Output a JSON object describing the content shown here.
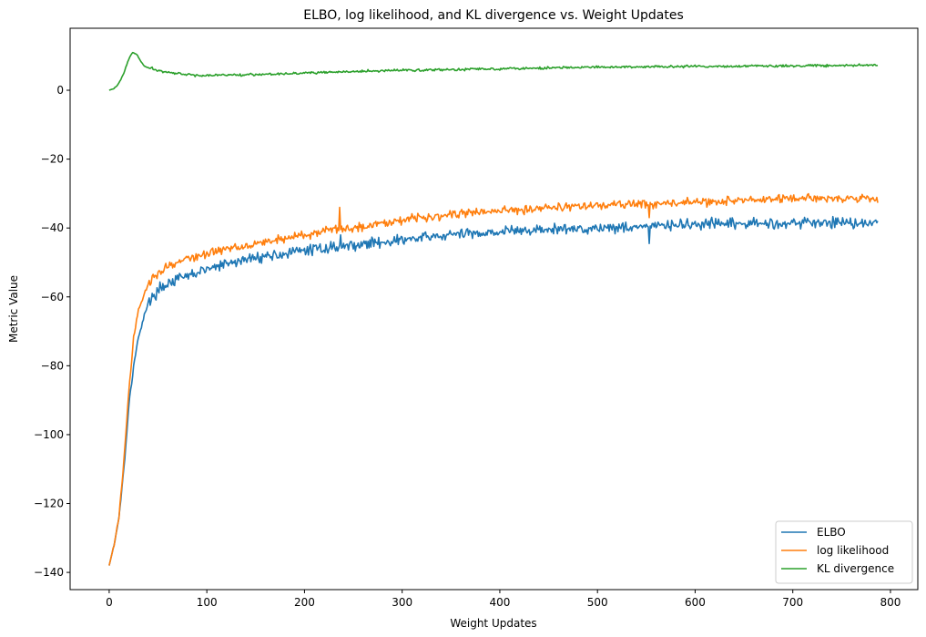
{
  "chart_data": {
    "type": "line",
    "title": "ELBO, log likelihood, and KL divergence vs. Weight Updates",
    "xlabel": "Weight Updates",
    "ylabel": "Metric Value",
    "xlim": [
      -40,
      828
    ],
    "ylim": [
      -145,
      18
    ],
    "xticks": [
      0,
      100,
      200,
      300,
      400,
      500,
      600,
      700,
      800
    ],
    "yticks": [
      0,
      -20,
      -40,
      -60,
      -80,
      -100,
      -120,
      -140
    ],
    "xtick_labels": [
      "0",
      "100",
      "200",
      "300",
      "400",
      "500",
      "600",
      "700",
      "800"
    ],
    "ytick_labels": [
      "0",
      "−20",
      "−40",
      "−60",
      "−80",
      "−100",
      "−120",
      "−140"
    ],
    "grid": false,
    "legend_position": "lower right",
    "x_range": [
      0,
      787
    ],
    "series": [
      {
        "name": "ELBO",
        "color": "#1f77b4",
        "points": [
          [
            0,
            -138
          ],
          [
            5,
            -132
          ],
          [
            10,
            -124
          ],
          [
            15,
            -110
          ],
          [
            20,
            -92
          ],
          [
            25,
            -80
          ],
          [
            30,
            -72
          ],
          [
            35,
            -66
          ],
          [
            40,
            -62
          ],
          [
            50,
            -58
          ],
          [
            60,
            -56
          ],
          [
            70,
            -55
          ],
          [
            80,
            -54
          ],
          [
            100,
            -52
          ],
          [
            120,
            -50.5
          ],
          [
            150,
            -48.5
          ],
          [
            180,
            -47.5
          ],
          [
            200,
            -46.5
          ],
          [
            230,
            -45.5
          ],
          [
            250,
            -45
          ],
          [
            280,
            -44
          ],
          [
            300,
            -43.5
          ],
          [
            350,
            -42
          ],
          [
            400,
            -41
          ],
          [
            450,
            -40.5
          ],
          [
            500,
            -40
          ],
          [
            550,
            -39.5
          ],
          [
            600,
            -39
          ],
          [
            650,
            -38.8
          ],
          [
            700,
            -38.5
          ],
          [
            750,
            -38.3
          ],
          [
            787,
            -38.5
          ]
        ],
        "spikes": [
          [
            237,
            -42
          ],
          [
            553,
            -44.5
          ]
        ],
        "noise": 1.1
      },
      {
        "name": "log likelihood",
        "color": "#ff7f0e",
        "points": [
          [
            0,
            -138
          ],
          [
            5,
            -132
          ],
          [
            10,
            -124
          ],
          [
            15,
            -108
          ],
          [
            20,
            -88
          ],
          [
            25,
            -72
          ],
          [
            30,
            -64
          ],
          [
            35,
            -60
          ],
          [
            40,
            -56
          ],
          [
            50,
            -53
          ],
          [
            60,
            -51
          ],
          [
            70,
            -50
          ],
          [
            80,
            -49
          ],
          [
            100,
            -47.5
          ],
          [
            120,
            -46
          ],
          [
            150,
            -44.5
          ],
          [
            180,
            -43
          ],
          [
            200,
            -42
          ],
          [
            230,
            -40.5
          ],
          [
            250,
            -40
          ],
          [
            280,
            -38.5
          ],
          [
            300,
            -37.5
          ],
          [
            350,
            -36
          ],
          [
            400,
            -35
          ],
          [
            450,
            -34
          ],
          [
            500,
            -33.5
          ],
          [
            550,
            -33
          ],
          [
            600,
            -32.5
          ],
          [
            650,
            -32
          ],
          [
            700,
            -31.5
          ],
          [
            750,
            -31.3
          ],
          [
            787,
            -31.5
          ]
        ],
        "spikes": [
          [
            236,
            -34
          ],
          [
            553,
            -37
          ]
        ],
        "noise": 0.9
      },
      {
        "name": "KL divergence",
        "color": "#2ca02c",
        "points": [
          [
            0,
            0
          ],
          [
            5,
            0.5
          ],
          [
            10,
            2
          ],
          [
            15,
            5
          ],
          [
            20,
            9
          ],
          [
            24,
            11
          ],
          [
            28,
            10.5
          ],
          [
            32,
            8.5
          ],
          [
            36,
            7
          ],
          [
            40,
            6.5
          ],
          [
            50,
            5.8
          ],
          [
            60,
            5.2
          ],
          [
            70,
            4.8
          ],
          [
            80,
            4.5
          ],
          [
            100,
            4.3
          ],
          [
            150,
            4.6
          ],
          [
            200,
            5
          ],
          [
            250,
            5.4
          ],
          [
            300,
            5.8
          ],
          [
            350,
            6
          ],
          [
            400,
            6.3
          ],
          [
            450,
            6.5
          ],
          [
            500,
            6.7
          ],
          [
            550,
            6.8
          ],
          [
            600,
            6.9
          ],
          [
            650,
            7
          ],
          [
            700,
            7.1
          ],
          [
            750,
            7.2
          ],
          [
            787,
            7.3
          ]
        ],
        "spikes": [],
        "noise": 0.25
      }
    ]
  }
}
